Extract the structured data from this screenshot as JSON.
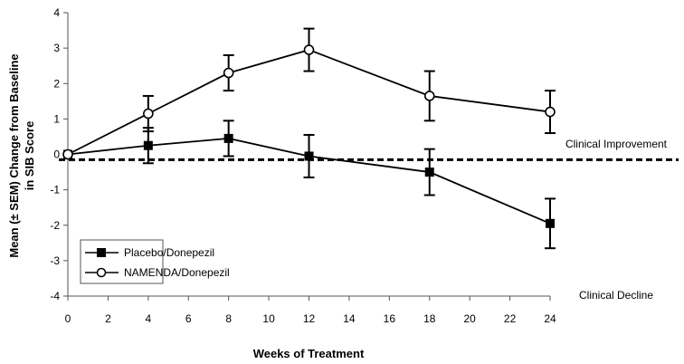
{
  "chart_data": {
    "type": "line",
    "title": "",
    "xlabel": "Weeks of Treatment",
    "ylabel": "Mean (± SEM) Change from Baseline in SIB Score",
    "ylabel_lines": [
      "Mean (± SEM) Change from Baseline",
      "in SIB Score"
    ],
    "xlim": [
      0,
      24
    ],
    "ylim": [
      -4,
      4
    ],
    "x_ticks": [
      0,
      2,
      4,
      6,
      8,
      10,
      12,
      14,
      16,
      18,
      20,
      22,
      24
    ],
    "y_ticks": [
      4,
      3,
      2,
      1,
      0,
      -1,
      -2,
      -3,
      -4
    ],
    "grid": false,
    "legend_position": "bottom-left",
    "reference_line": {
      "y": -0.15,
      "style": "dashed"
    },
    "annotations": [
      {
        "text": "Clinical Improvement",
        "position": "right, above reference line"
      },
      {
        "text": "Clinical Decline",
        "position": "bottom-right"
      }
    ],
    "series": [
      {
        "name": "Placebo/Donepezil",
        "marker": "filled-square",
        "x": [
          0,
          4,
          8,
          12,
          18,
          24
        ],
        "y": [
          0,
          0.25,
          0.45,
          -0.05,
          -0.5,
          -1.95
        ],
        "err": [
          0,
          0.5,
          0.5,
          0.6,
          0.65,
          0.7
        ]
      },
      {
        "name": "NAMENDA/Donepezil",
        "marker": "open-circle",
        "x": [
          0,
          4,
          8,
          12,
          18,
          24
        ],
        "y": [
          0,
          1.15,
          2.3,
          2.95,
          1.65,
          1.2
        ],
        "err": [
          0,
          0.5,
          0.5,
          0.6,
          0.7,
          0.6
        ]
      }
    ]
  },
  "colors": {
    "line": "#000000",
    "axis": "#555555",
    "legend_border": "#555555"
  }
}
